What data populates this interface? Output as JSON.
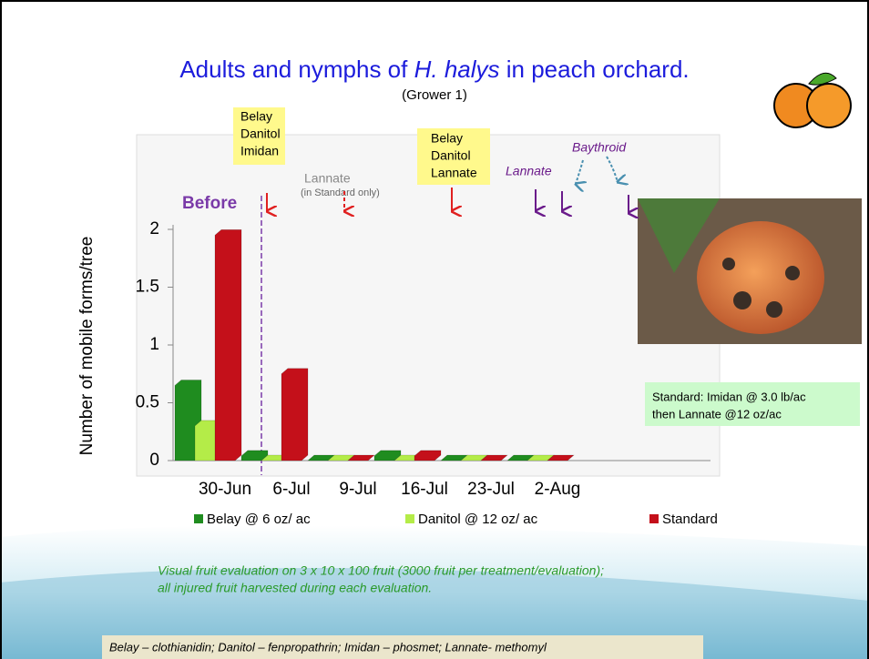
{
  "slide": {
    "note_lines": [
      "Visual fruit evaluation on 3 x 10 x 100 fruit (3000 fruit per treatment/evaluation);",
      "all injured fruit harvested during each evaluation."
    ],
    "footer": "Belay – clothianidin; Danitol – fenpropathrin; Imidan – phosmet; Lannate- methomyl",
    "info_box": [
      "Standard: Imidan @ 3.0 lb/ac",
      "then Lannate @12 oz/ac"
    ]
  },
  "chart_data": {
    "type": "bar",
    "title_parts": [
      "Adults and nymphs of ",
      "H. halys",
      "  in peach orchard."
    ],
    "subtitle": "(Grower 1)",
    "y_label": "Number of mobile forms/tree",
    "categories": [
      "30-Jun",
      "6-Jul",
      "9-Jul",
      "16-Jul",
      "23-Jul",
      "2-Aug"
    ],
    "series": [
      {
        "name": "Belay @ 6 oz/ ac",
        "color": "#1f8c1f",
        "values": [
          0.65,
          0.04,
          0,
          0.04,
          0,
          0
        ]
      },
      {
        "name": "Danitol @ 12 oz/ ac",
        "color": "#b4ec48",
        "values": [
          0.3,
          0,
          0,
          0,
          0,
          0
        ]
      },
      {
        "name": "Standard",
        "color": "#c4101a",
        "values": [
          1.95,
          0.75,
          0,
          0.04,
          0,
          0
        ]
      }
    ],
    "ylim": [
      0,
      2
    ],
    "yticks": [
      0,
      0.5,
      1,
      1.5,
      2
    ],
    "annotations": {
      "before": "Before",
      "spray1": [
        "Belay",
        "Danitol",
        "Imidan"
      ],
      "lannate_std": [
        "Lannate",
        "(in Standard only)"
      ],
      "spray2": [
        "Belay",
        "Danitol",
        "Lannate"
      ],
      "lannate": "Lannate",
      "baythroid": "Baythroid"
    }
  }
}
